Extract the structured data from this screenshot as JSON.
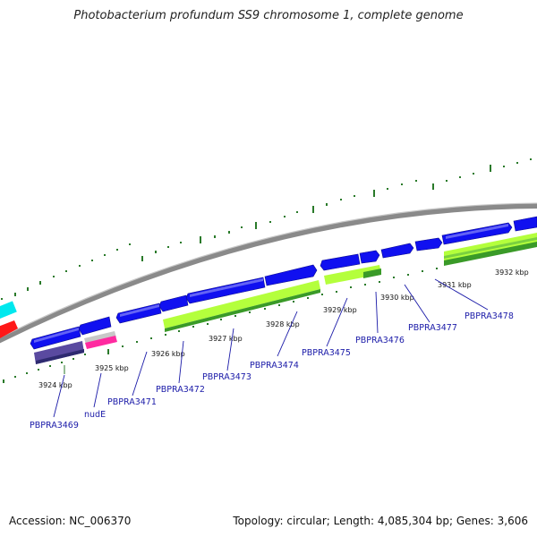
{
  "title": "Photobacterium profundum SS9 chromosome 1, complete genome",
  "footer": {
    "accession": "Accession: NC_006370",
    "summary": "Topology: circular; Length: 4,085,304 bp; Genes: 3,606"
  },
  "colors": {
    "backbone": "#8a8a8a",
    "forward_gene": "#1010f0",
    "orf_light": "#b4ff3c",
    "orf_dark": "#3a9a28",
    "tick_green": "#2a7a2a",
    "label_blue": "#1a1aa8",
    "purple": "#5a4aa0",
    "pink": "#ff2aa0",
    "cyan": "#00e8ee",
    "red": "#ff1818"
  },
  "kbp_labels": [
    {
      "text": "3924 kbp",
      "position_kbp": 3924
    },
    {
      "text": "3925 kbp",
      "position_kbp": 3925
    },
    {
      "text": "3926 kbp",
      "position_kbp": 3926
    },
    {
      "text": "3927 kbp",
      "position_kbp": 3927
    },
    {
      "text": "3928 kbp",
      "position_kbp": 3928
    },
    {
      "text": "3929 kbp",
      "position_kbp": 3929
    },
    {
      "text": "3930 kbp",
      "position_kbp": 3930
    },
    {
      "text": "3931 kbp",
      "position_kbp": 3931
    },
    {
      "text": "3932 kbp",
      "position_kbp": 3932
    }
  ],
  "gene_labels": [
    {
      "text": "PBPRA3469"
    },
    {
      "text": "nudE"
    },
    {
      "text": "PBPRA3471"
    },
    {
      "text": "PBPRA3472"
    },
    {
      "text": "PBPRA3473"
    },
    {
      "text": "PBPRA3474"
    },
    {
      "text": "PBPRA3475"
    },
    {
      "text": "PBPRA3476"
    },
    {
      "text": "PBPRA3477"
    },
    {
      "text": "PBPRA3478"
    }
  ]
}
